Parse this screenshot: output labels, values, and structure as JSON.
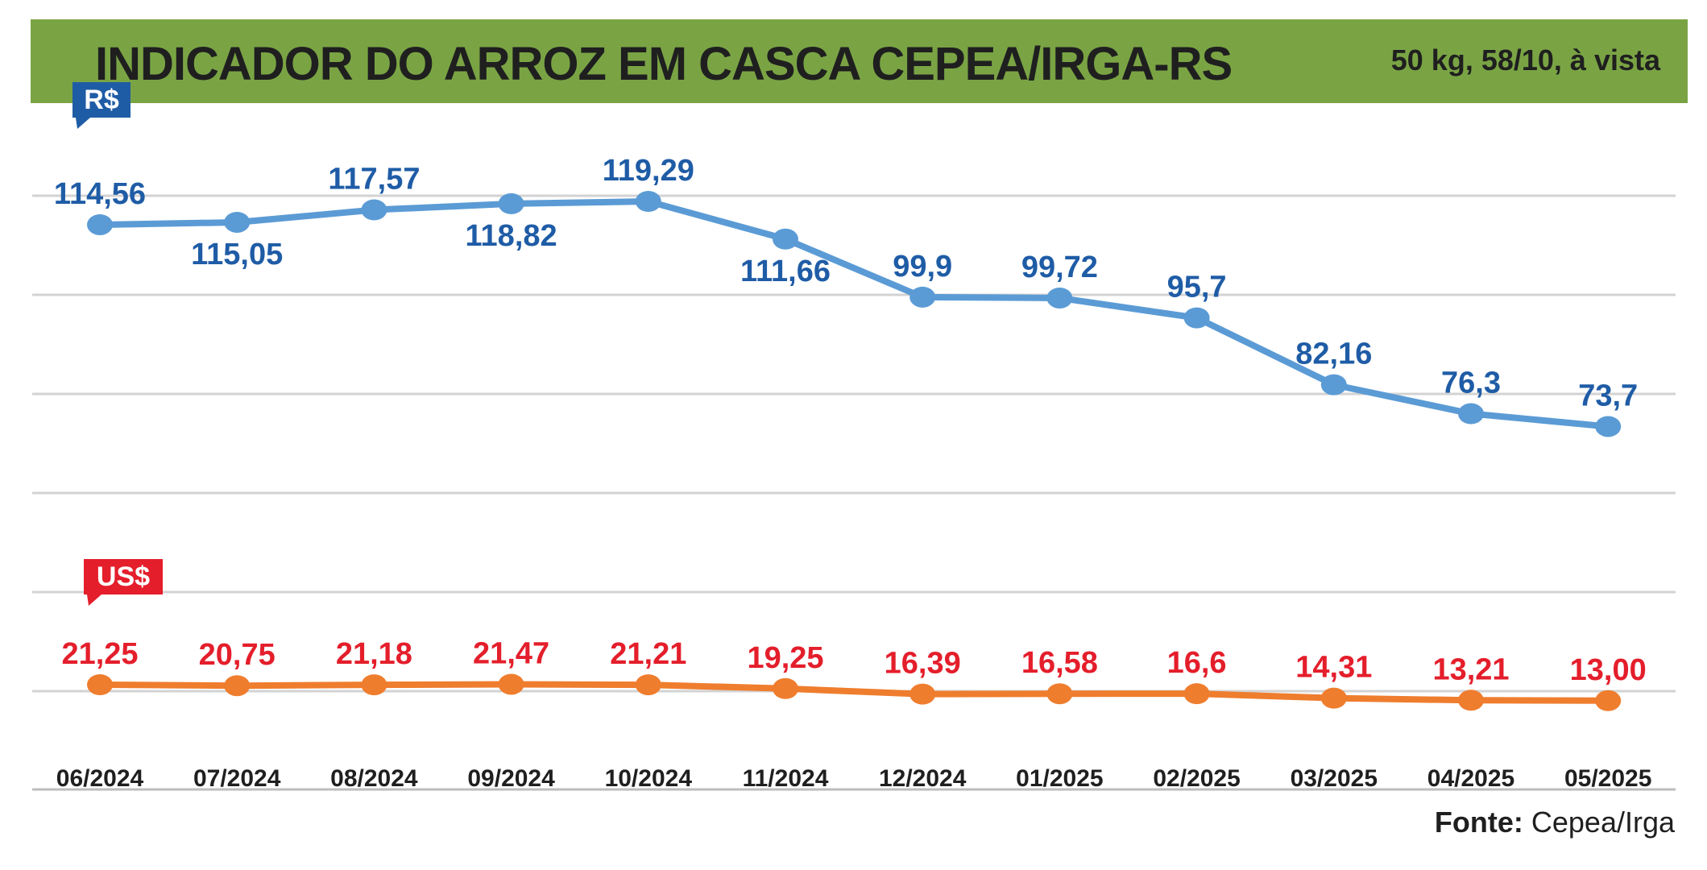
{
  "header": {
    "title": "INDICADOR DO ARROZ EM CASCA CEPEA/IRGA-RS",
    "subtitle": "50 kg, 58/10, à vista"
  },
  "source": {
    "label": "Fonte:",
    "value": "Cepea/Irga"
  },
  "chart_data": {
    "type": "line",
    "title": "INDICADOR DO ARROZ EM CASCA CEPEA/IRGA-RS",
    "subtitle": "50 kg, 58/10, à vista",
    "categories": [
      "06/2024",
      "07/2024",
      "08/2024",
      "09/2024",
      "10/2024",
      "11/2024",
      "12/2024",
      "01/2025",
      "02/2025",
      "03/2025",
      "04/2025",
      "05/2025"
    ],
    "grid": true,
    "series": [
      {
        "name": "R$",
        "color": "#5b9bd5",
        "label_color": "#1f5ca6",
        "badge_color": "#1f5ca6",
        "values": [
          114.56,
          115.05,
          117.57,
          118.82,
          119.29,
          111.66,
          99.9,
          99.72,
          95.7,
          82.16,
          76.3,
          73.7
        ],
        "labels": [
          "114,56",
          "115,05",
          "117,57",
          "118,82",
          "119,29",
          "111,66",
          "99,9",
          "99,72",
          "95,7",
          "82,16",
          "76,3",
          "73,7"
        ],
        "label_positions": [
          "above",
          "below",
          "above",
          "below",
          "above",
          "below",
          "above",
          "above",
          "above",
          "above",
          "above",
          "above"
        ]
      },
      {
        "name": "US$",
        "color": "#ef7d2e",
        "label_color": "#e41e2b",
        "badge_color": "#e41e2b",
        "values": [
          21.25,
          20.75,
          21.18,
          21.47,
          21.21,
          19.25,
          16.39,
          16.58,
          16.6,
          14.31,
          13.21,
          13.0
        ],
        "labels": [
          "21,25",
          "20,75",
          "21,18",
          "21,47",
          "21,21",
          "19,25",
          "16,39",
          "16,58",
          "16,6",
          "14,31",
          "13,21",
          "13,00"
        ],
        "label_positions": [
          "above",
          "above",
          "above",
          "above",
          "above",
          "above",
          "above",
          "above",
          "above",
          "above",
          "above",
          "above"
        ]
      }
    ]
  }
}
